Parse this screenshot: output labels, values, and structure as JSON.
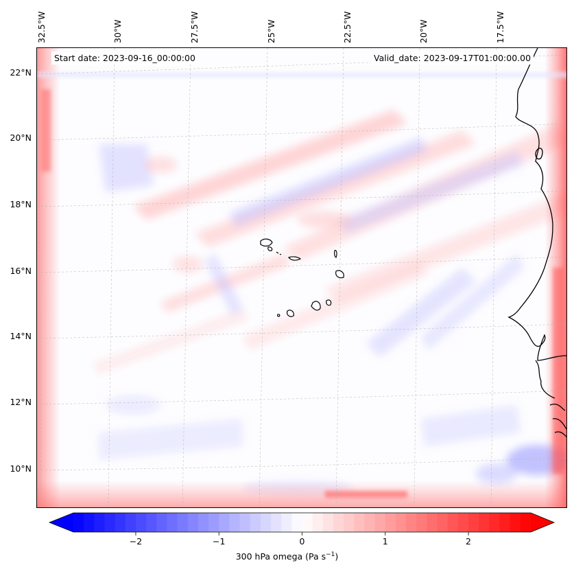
{
  "map": {
    "start_date": "Start date: 2023-09-16_00:00:00",
    "valid_date": "Valid_date: 2023-09-17T01:00:00.00",
    "lon_labels": [
      "32.5°W",
      "30°W",
      "27.5°W",
      "25°W",
      "22.5°W",
      "20°W",
      "17.5°W"
    ],
    "lat_labels": [
      "22°N",
      "20°N",
      "18°N",
      "16°N",
      "14°N",
      "12°N",
      "10°N"
    ],
    "field": "300 hPa omega",
    "extent": {
      "lon_min": -33.0,
      "lon_max": -15.6,
      "lat_min": 8.9,
      "lat_max": 22.8
    },
    "colors": {
      "positive": "#ff0000",
      "negative": "#0000ff",
      "zero": "#ffffff",
      "coastline": "#000000",
      "grid": "#b0b0b0"
    }
  },
  "colorbar": {
    "label_prefix": "300 hPa omega (Pa s",
    "label_exp": "−1",
    "label_suffix": ")",
    "ticks": [
      "−2",
      "−1",
      "0",
      "1",
      "2"
    ],
    "tick_values": [
      -2,
      -1,
      0,
      1,
      2
    ],
    "range": [
      -2.75,
      2.75
    ],
    "colormap": "bwr"
  }
}
